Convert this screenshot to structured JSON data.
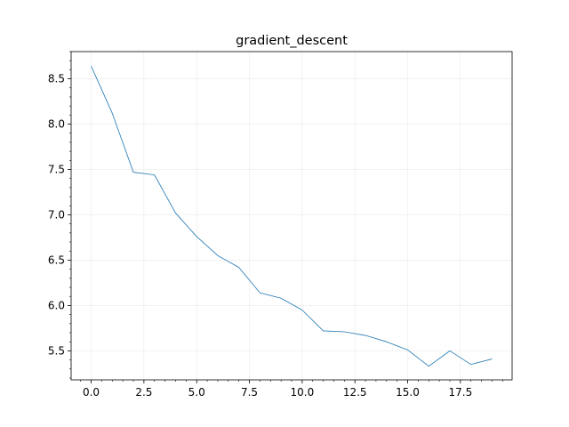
{
  "chart_data": {
    "type": "line",
    "title": "gradient_descent",
    "xlabel": "",
    "ylabel": "",
    "xlim": [
      -0.95,
      19.95
    ],
    "ylim": [
      5.18,
      8.8
    ],
    "grid": true,
    "x_ticks": [
      0.0,
      2.5,
      5.0,
      7.5,
      10.0,
      12.5,
      15.0,
      17.5
    ],
    "x_tick_labels": [
      "0.0",
      "2.5",
      "5.0",
      "7.5",
      "10.0",
      "12.5",
      "15.0",
      "17.5"
    ],
    "y_ticks": [
      5.5,
      6.0,
      6.5,
      7.0,
      7.5,
      8.0,
      8.5
    ],
    "y_tick_labels": [
      "5.5",
      "6.0",
      "6.5",
      "7.0",
      "7.5",
      "8.0",
      "8.5"
    ],
    "series": [
      {
        "name": "gradient_descent",
        "color": "#1f77b4",
        "x": [
          0,
          1,
          2,
          3,
          4,
          5,
          6,
          7,
          8,
          9,
          10,
          11,
          12,
          13,
          14,
          15,
          16,
          17,
          18,
          19
        ],
        "values": [
          8.64,
          8.12,
          7.47,
          7.44,
          7.02,
          6.76,
          6.55,
          6.42,
          6.14,
          6.08,
          5.95,
          5.72,
          5.71,
          5.67,
          5.6,
          5.51,
          5.33,
          5.5,
          5.35,
          5.41
        ]
      }
    ]
  }
}
